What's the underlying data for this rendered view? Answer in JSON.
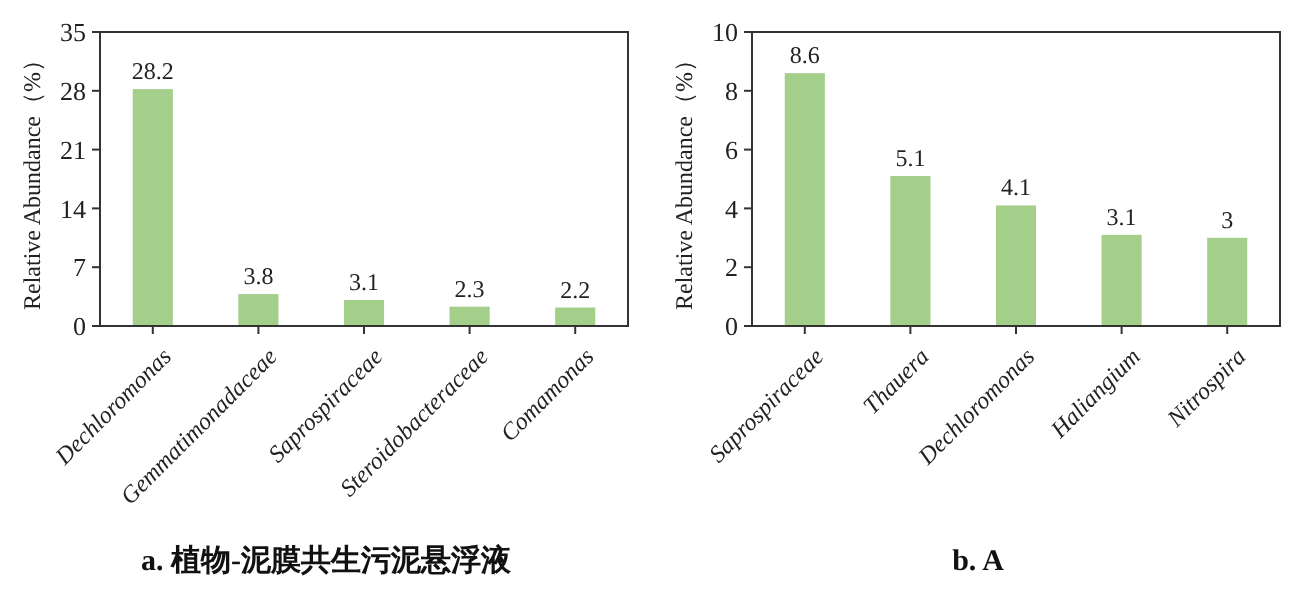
{
  "chart_data": [
    {
      "type": "bar",
      "title": "a. 植物-泥膜共生污泥悬浮液",
      "ylabel": "Relative Abundance（%）",
      "categories": [
        "Dechloromonas",
        "Gemmatimonadaceae",
        "Saprospiraceae",
        "Steroidobacteraceae",
        "Comamonas"
      ],
      "values": [
        28.2,
        3.8,
        3.1,
        2.3,
        2.2
      ],
      "color": "#a3cf8a",
      "ylim": [
        0,
        35
      ],
      "yticks": [
        0,
        7,
        14,
        21,
        28,
        35
      ],
      "data_labels": true,
      "grid": false
    },
    {
      "type": "bar",
      "title": "b. A",
      "ylabel": "Relative Abundance（%）",
      "categories": [
        "Saprospiraceae",
        "Thauera",
        "Dechloromonas",
        "Haliangium",
        "Nitrospira"
      ],
      "values": [
        8.6,
        5.1,
        4.1,
        3.1,
        3
      ],
      "color": "#a3cf8a",
      "ylim": [
        0,
        10
      ],
      "yticks": [
        0,
        2,
        4,
        6,
        8,
        10
      ],
      "data_labels": true,
      "grid": false
    }
  ]
}
